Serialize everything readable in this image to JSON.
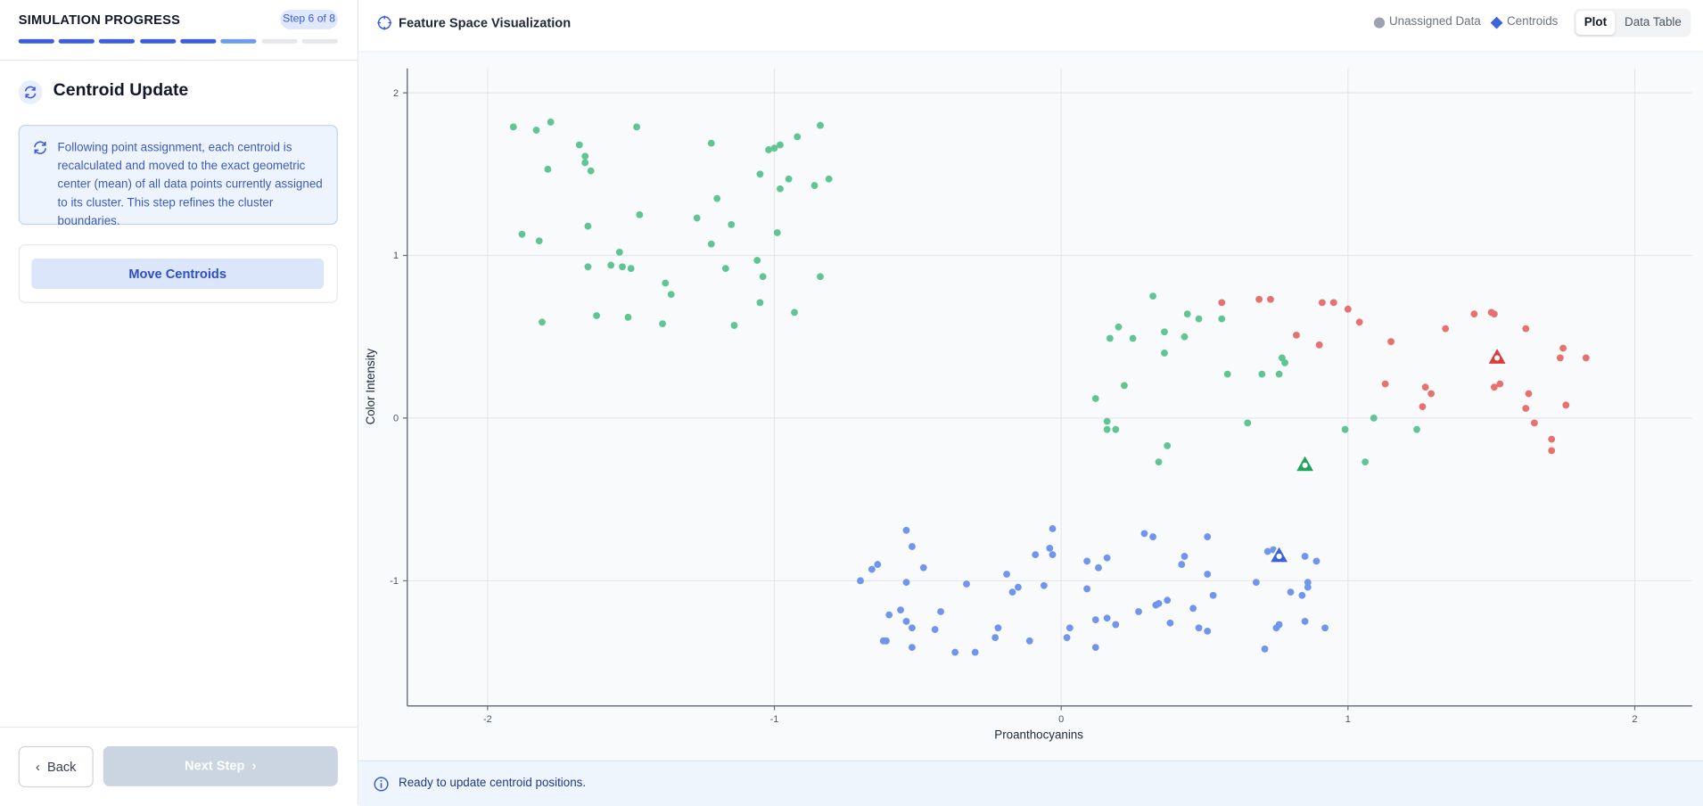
{
  "sidebar": {
    "progress_title": "SIMULATION PROGRESS",
    "step_badge": "Step 6 of 8",
    "step_title": "Centroid Update",
    "description": "Following point assignment, each centroid is recalculated and moved to the exact geometric center (mean) of all data points currently assigned to its cluster. This step refines the cluster boundaries.",
    "action_button": "Move Centroids",
    "back_button": "Back",
    "next_button": "Next Step"
  },
  "header": {
    "title": "Feature Space Visualization",
    "tabs": [
      "Plot",
      "Data Table"
    ]
  },
  "status": "Ready to update centroid positions.",
  "chart_data": {
    "type": "scatter",
    "xlabel": "Proanthocyanins",
    "ylabel": "Color Intensity",
    "xlim": [
      -2.28,
      2.2
    ],
    "ylim": [
      -1.77,
      2.15
    ],
    "xticks": [
      -2,
      -1,
      0,
      1,
      2
    ],
    "yticks": [
      -1,
      0,
      1,
      2
    ],
    "grid": true,
    "legend": [
      {
        "label": "Unassigned Data",
        "color": "#9ca3af",
        "marker": "circle"
      },
      {
        "label": "Centroids",
        "color": "#3b63e0",
        "marker": "diamond"
      }
    ],
    "series": [
      {
        "color": "#5fc592",
        "x": [
          -1.91,
          -1.83,
          -1.78,
          -1.79,
          -1.68,
          -1.66,
          -1.66,
          -1.64,
          -1.48,
          -1.88,
          -1.82,
          -1.65,
          -1.47,
          -1.65,
          -1.57,
          -1.54,
          -1.53,
          -1.5,
          -1.81,
          -1.62,
          -1.51,
          -1.39,
          -1.38,
          -1.36,
          -1.22,
          -1.2,
          -1.27,
          -1.15,
          -1.22,
          -1.17,
          -1.14,
          -1.06,
          -1.04,
          -1.05,
          -1.02,
          -1.0,
          -0.98,
          -1.05,
          -0.95,
          -0.98,
          -0.99,
          -0.92,
          -0.84,
          -0.81,
          -0.86,
          -0.84,
          -0.93,
          0.32,
          0.2,
          0.17,
          0.25,
          0.36,
          0.36,
          0.44,
          0.43,
          0.48,
          0.56,
          0.58,
          0.22,
          0.12,
          0.16,
          0.16,
          0.19,
          0.37,
          0.34,
          0.65,
          0.7,
          0.76,
          0.77,
          0.78,
          0.99,
          1.09,
          1.06,
          1.24
        ],
        "y": [
          1.79,
          1.77,
          1.82,
          1.53,
          1.68,
          1.61,
          1.57,
          1.52,
          1.79,
          1.13,
          1.09,
          1.18,
          1.25,
          0.93,
          0.94,
          1.02,
          0.93,
          0.92,
          0.59,
          0.63,
          0.62,
          0.58,
          0.83,
          0.76,
          1.69,
          1.35,
          1.23,
          1.19,
          1.07,
          0.92,
          0.57,
          0.97,
          0.87,
          0.71,
          1.65,
          1.66,
          1.68,
          1.5,
          1.47,
          1.41,
          1.14,
          1.73,
          1.8,
          1.47,
          1.43,
          0.87,
          0.65,
          0.75,
          0.56,
          0.49,
          0.49,
          0.53,
          0.4,
          0.64,
          0.5,
          0.61,
          0.61,
          0.27,
          0.2,
          0.12,
          -0.02,
          -0.07,
          -0.07,
          -0.17,
          -0.27,
          -0.03,
          0.27,
          0.27,
          0.37,
          0.34,
          -0.07,
          0.0,
          -0.27,
          -0.07
        ]
      },
      {
        "color": "#e8706f",
        "x": [
          0.56,
          0.69,
          0.73,
          0.82,
          0.9,
          0.91,
          0.95,
          1.0,
          1.04,
          1.15,
          1.13,
          1.27,
          1.29,
          1.26,
          1.34,
          1.44,
          1.5,
          1.51,
          1.62,
          1.51,
          1.53,
          1.63,
          1.62,
          1.65,
          1.75,
          1.74,
          1.83,
          1.76,
          1.71,
          1.71
        ],
        "y": [
          0.71,
          0.73,
          0.73,
          0.51,
          0.45,
          0.71,
          0.71,
          0.67,
          0.59,
          0.47,
          0.21,
          0.19,
          0.15,
          0.07,
          0.55,
          0.64,
          0.65,
          0.64,
          0.55,
          0.19,
          0.21,
          0.15,
          0.06,
          -0.03,
          0.43,
          0.37,
          0.37,
          0.08,
          -0.13,
          -0.2
        ]
      },
      {
        "color": "#6f95ef",
        "x": [
          -0.7,
          -0.66,
          -0.64,
          -0.54,
          -0.52,
          -0.54,
          -0.48,
          -0.6,
          -0.56,
          -0.54,
          -0.52,
          -0.62,
          -0.61,
          -0.52,
          -0.44,
          -0.42,
          -0.33,
          -0.37,
          -0.3,
          -0.23,
          -0.22,
          -0.19,
          -0.17,
          -0.15,
          -0.11,
          -0.09,
          -0.06,
          -0.04,
          -0.03,
          -0.03,
          0.02,
          0.03,
          0.09,
          0.09,
          0.13,
          0.16,
          0.12,
          0.16,
          0.19,
          0.12,
          0.27,
          0.29,
          0.32,
          0.33,
          0.34,
          0.37,
          0.38,
          0.42,
          0.43,
          0.46,
          0.48,
          0.51,
          0.51,
          0.51,
          0.53,
          0.68,
          0.71,
          0.72,
          0.74,
          0.75,
          0.76,
          0.8,
          0.84,
          0.86,
          0.86,
          0.85,
          0.85,
          0.89,
          0.92
        ],
        "y": [
          -1.0,
          -0.93,
          -0.9,
          -0.69,
          -0.79,
          -1.01,
          -0.92,
          -1.21,
          -1.18,
          -1.25,
          -1.29,
          -1.37,
          -1.37,
          -1.41,
          -1.3,
          -1.19,
          -1.02,
          -1.44,
          -1.44,
          -1.35,
          -1.29,
          -0.96,
          -1.07,
          -1.04,
          -1.37,
          -0.84,
          -1.03,
          -0.8,
          -0.84,
          -0.68,
          -1.35,
          -1.29,
          -0.88,
          -1.05,
          -0.92,
          -0.86,
          -1.24,
          -1.23,
          -1.27,
          -1.41,
          -1.19,
          -0.71,
          -0.73,
          -1.15,
          -1.14,
          -1.12,
          -1.26,
          -0.9,
          -0.85,
          -1.17,
          -1.29,
          -1.31,
          -0.73,
          -0.96,
          -1.09,
          -1.01,
          -1.42,
          -0.82,
          -0.81,
          -1.29,
          -1.27,
          -1.07,
          -1.09,
          -1.01,
          -1.04,
          -1.25,
          -0.85,
          -0.88,
          -1.29
        ]
      }
    ],
    "centroids": {
      "x": [
        1.52,
        0.85,
        0.76
      ],
      "y": [
        0.37,
        -0.29,
        -0.85
      ],
      "colors": [
        "#e03b3b",
        "#22a35a",
        "#3b63e0"
      ]
    }
  }
}
